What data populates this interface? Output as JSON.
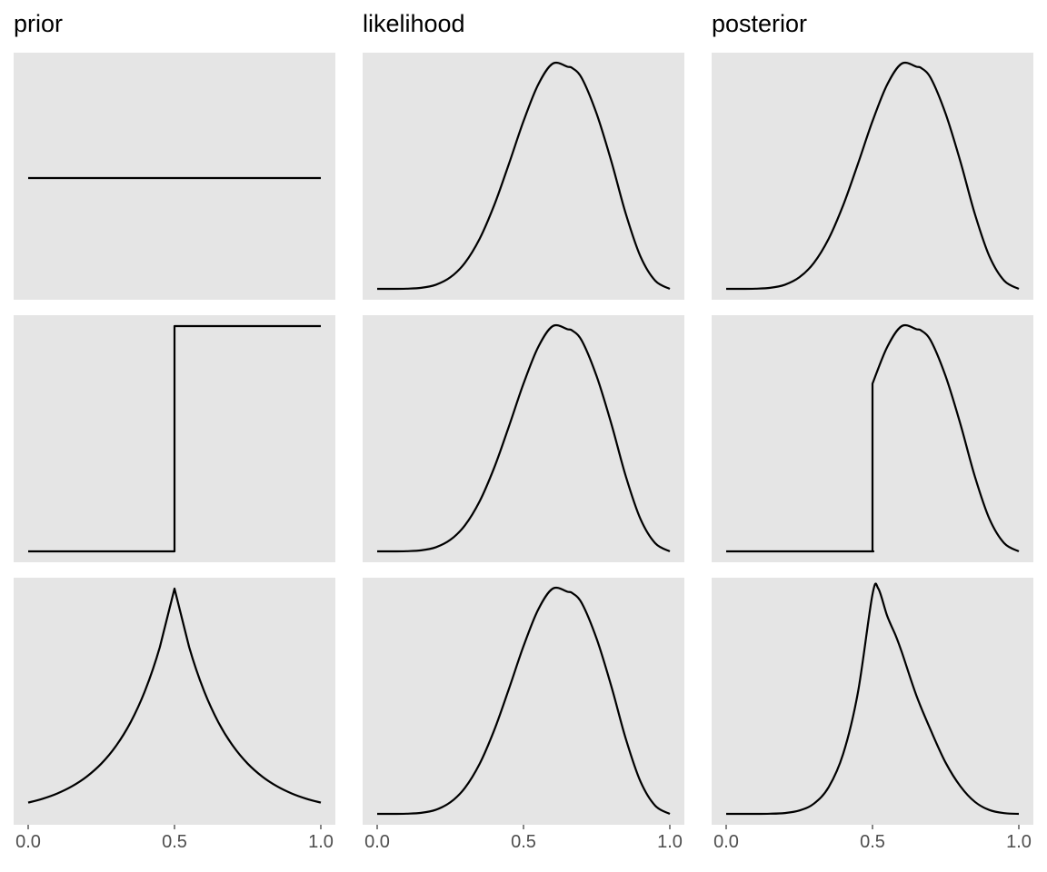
{
  "figure": {
    "columns": [
      "prior",
      "likelihood",
      "posterior"
    ]
  },
  "colors": {
    "panel_background": "#e5e5e5",
    "line": "#000000",
    "tick_label": "#4d4d4d"
  },
  "chart_data": [
    {
      "type": "line",
      "column": "prior",
      "row": 1,
      "xlim": [
        0,
        1
      ],
      "x_ticks": [
        "0.0",
        "0.5",
        "1.0"
      ],
      "grid": false,
      "series": [
        {
          "x": [
            0,
            1
          ],
          "y": [
            1,
            1
          ]
        }
      ]
    },
    {
      "type": "line",
      "column": "likelihood",
      "row": 1,
      "xlim": [
        0,
        1
      ],
      "x_ticks": [
        "0.0",
        "0.5",
        "1.0"
      ],
      "grid": false,
      "series": [
        {
          "x": [
            0,
            0.05,
            0.1,
            0.15,
            0.2,
            0.25,
            0.3,
            0.35,
            0.4,
            0.45,
            0.5,
            0.55,
            0.6,
            0.65,
            0.667,
            0.7,
            0.75,
            0.8,
            0.85,
            0.9,
            0.95,
            1
          ],
          "y": [
            0,
            0,
            0.0003,
            0.0019,
            0.0075,
            0.0215,
            0.0486,
            0.0932,
            0.1561,
            0.2326,
            0.3125,
            0.3807,
            0.4199,
            0.4141,
            0.4115,
            0.392,
            0.3262,
            0.2381,
            0.1391,
            0.06,
            0.0153,
            0
          ]
        }
      ]
    },
    {
      "type": "line",
      "column": "posterior",
      "row": 1,
      "xlim": [
        0,
        1
      ],
      "x_ticks": [
        "0.0",
        "0.5",
        "1.0"
      ],
      "grid": false,
      "series": [
        {
          "x": [
            0,
            0.05,
            0.1,
            0.15,
            0.2,
            0.25,
            0.3,
            0.35,
            0.4,
            0.45,
            0.5,
            0.55,
            0.6,
            0.65,
            0.667,
            0.7,
            0.75,
            0.8,
            0.85,
            0.9,
            0.95,
            1
          ],
          "y": [
            0,
            0,
            0.0003,
            0.0019,
            0.0075,
            0.0215,
            0.0486,
            0.0932,
            0.1561,
            0.2326,
            0.3125,
            0.3807,
            0.4199,
            0.4141,
            0.4115,
            0.392,
            0.3262,
            0.2381,
            0.1391,
            0.06,
            0.0153,
            0
          ]
        }
      ]
    },
    {
      "type": "line",
      "column": "prior",
      "row": 2,
      "xlim": [
        0,
        1
      ],
      "x_ticks": [
        "0.0",
        "0.5",
        "1.0"
      ],
      "grid": false,
      "series": [
        {
          "x": [
            0,
            0.5,
            0.5,
            1
          ],
          "y": [
            0,
            0,
            1,
            1
          ]
        }
      ]
    },
    {
      "type": "line",
      "column": "likelihood",
      "row": 2,
      "xlim": [
        0,
        1
      ],
      "x_ticks": [
        "0.0",
        "0.5",
        "1.0"
      ],
      "grid": false,
      "series": [
        {
          "x": [
            0,
            0.05,
            0.1,
            0.15,
            0.2,
            0.25,
            0.3,
            0.35,
            0.4,
            0.45,
            0.5,
            0.55,
            0.6,
            0.65,
            0.667,
            0.7,
            0.75,
            0.8,
            0.85,
            0.9,
            0.95,
            1
          ],
          "y": [
            0,
            0,
            0.0003,
            0.0019,
            0.0075,
            0.0215,
            0.0486,
            0.0932,
            0.1561,
            0.2326,
            0.3125,
            0.3807,
            0.4199,
            0.4141,
            0.4115,
            0.392,
            0.3262,
            0.2381,
            0.1391,
            0.06,
            0.0153,
            0
          ]
        }
      ]
    },
    {
      "type": "line",
      "column": "posterior",
      "row": 2,
      "xlim": [
        0,
        1
      ],
      "x_ticks": [
        "0.0",
        "0.5",
        "1.0"
      ],
      "grid": false,
      "series": [
        {
          "x": [
            0,
            0.45,
            0.5,
            0.5,
            0.55,
            0.6,
            0.65,
            0.667,
            0.7,
            0.75,
            0.8,
            0.85,
            0.9,
            0.95,
            1
          ],
          "y": [
            0,
            0,
            0,
            0.3125,
            0.3807,
            0.4199,
            0.4141,
            0.4115,
            0.392,
            0.3262,
            0.2381,
            0.1391,
            0.06,
            0.0153,
            0
          ]
        }
      ]
    },
    {
      "type": "line",
      "column": "prior",
      "row": 3,
      "xlim": [
        0,
        1
      ],
      "x_ticks": [
        "0.0",
        "0.5",
        "1.0"
      ],
      "grid": false,
      "series": [
        {
          "x": [
            0,
            0.05,
            0.1,
            0.15,
            0.2,
            0.25,
            0.3,
            0.35,
            0.4,
            0.45,
            0.5,
            0.55,
            0.6,
            0.65,
            0.7,
            0.75,
            0.8,
            0.85,
            0.9,
            0.95,
            1
          ],
          "y": [
            0.0498,
            0.0672,
            0.0907,
            0.1225,
            0.1653,
            0.2231,
            0.3012,
            0.4066,
            0.5488,
            0.7408,
            1,
            0.7408,
            0.5488,
            0.4066,
            0.3012,
            0.2231,
            0.1653,
            0.1225,
            0.0907,
            0.0672,
            0.0498
          ]
        }
      ]
    },
    {
      "type": "line",
      "column": "likelihood",
      "row": 3,
      "xlim": [
        0,
        1
      ],
      "x_ticks": [
        "0.0",
        "0.5",
        "1.0"
      ],
      "grid": false,
      "series": [
        {
          "x": [
            0,
            0.05,
            0.1,
            0.15,
            0.2,
            0.25,
            0.3,
            0.35,
            0.4,
            0.45,
            0.5,
            0.55,
            0.6,
            0.65,
            0.667,
            0.7,
            0.75,
            0.8,
            0.85,
            0.9,
            0.95,
            1
          ],
          "y": [
            0,
            0,
            0.0003,
            0.0019,
            0.0075,
            0.0215,
            0.0486,
            0.0932,
            0.1561,
            0.2326,
            0.3125,
            0.3807,
            0.4199,
            0.4141,
            0.4115,
            0.392,
            0.3262,
            0.2381,
            0.1391,
            0.06,
            0.0153,
            0
          ]
        }
      ]
    },
    {
      "type": "line",
      "column": "posterior",
      "row": 3,
      "xlim": [
        0,
        1
      ],
      "x_ticks": [
        "0.0",
        "0.5",
        "1.0"
      ],
      "grid": false,
      "series": [
        {
          "x": [
            0,
            0.05,
            0.1,
            0.15,
            0.2,
            0.25,
            0.3,
            0.35,
            0.4,
            0.45,
            0.5,
            0.52,
            0.55,
            0.58,
            0.6,
            0.65,
            0.7,
            0.75,
            0.8,
            0.85,
            0.9,
            0.95,
            1
          ],
          "y": [
            0,
            0,
            0,
            0.0002,
            0.0012,
            0.0048,
            0.0146,
            0.0379,
            0.0857,
            0.1723,
            0.3125,
            0.3206,
            0.282,
            0.2528,
            0.2304,
            0.1684,
            0.1181,
            0.0728,
            0.0394,
            0.017,
            0.0054,
            0.001,
            0
          ]
        }
      ]
    }
  ]
}
